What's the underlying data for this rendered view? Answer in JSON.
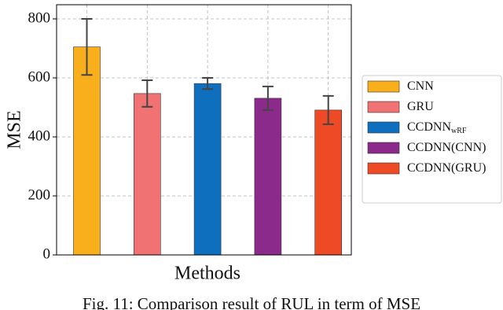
{
  "chart_data": {
    "type": "bar",
    "xlabel": "Methods",
    "ylabel": "MSE",
    "caption": "Fig. 11: Comparison result of RUL in term of MSE",
    "ylim": [
      0,
      848
    ],
    "yticks": [
      0,
      200,
      400,
      600,
      800
    ],
    "grid": true,
    "legend": "outside-right",
    "series": [
      {
        "name": "CNN",
        "color": "#f9ae1b",
        "values": [
          705
        ],
        "errors": [
          95
        ]
      },
      {
        "name": "GRU",
        "color": "#f07272",
        "values": [
          547
        ],
        "errors": [
          45
        ]
      },
      {
        "name": "CCDNN",
        "name_subscript": "wRF",
        "color": "#0e6fbf",
        "values": [
          581
        ],
        "errors": [
          19
        ]
      },
      {
        "name": "CCDNN(CNN)",
        "color": "#8b2a8b",
        "values": [
          531
        ],
        "errors": [
          40
        ]
      },
      {
        "name": "CCDNN(GRU)",
        "color": "#ee4a25",
        "values": [
          491
        ],
        "errors": [
          48
        ]
      }
    ]
  }
}
